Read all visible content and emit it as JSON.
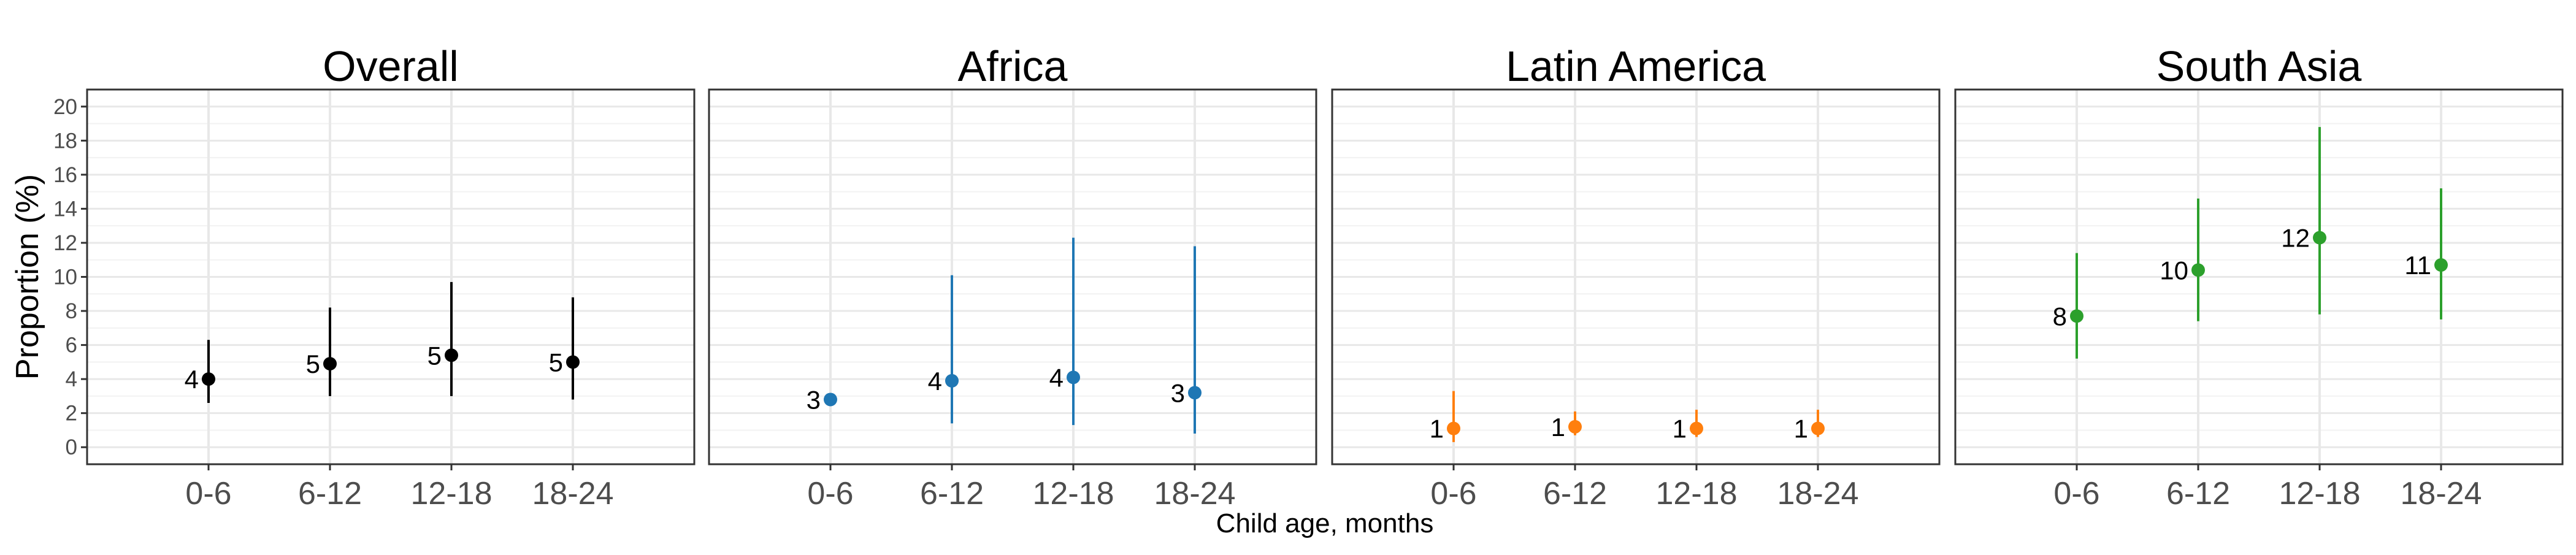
{
  "chart_data": {
    "type": "scatter",
    "subtype": "point-range faceted",
    "ylabel": "Proportion (%)",
    "xlabel": "Child age, months",
    "categories": [
      "0-6",
      "6-12",
      "12-18",
      "18-24"
    ],
    "ylim": [
      -1,
      21
    ],
    "yticks": [
      "0",
      "2",
      "4",
      "6",
      "8",
      "10",
      "12",
      "14",
      "16",
      "18",
      "20"
    ],
    "grid": true,
    "legend": "none",
    "panels": [
      {
        "title": "Overall",
        "color": "#000000",
        "values": [
          4.0,
          4.9,
          5.4,
          5.0
        ],
        "lower": [
          2.6,
          3.0,
          3.0,
          2.8
        ],
        "upper": [
          6.3,
          8.2,
          9.7,
          8.8
        ],
        "labels": [
          "4",
          "5",
          "5",
          "5"
        ]
      },
      {
        "title": "Africa",
        "color": "#1f77b4",
        "values": [
          2.8,
          3.9,
          4.1,
          3.2
        ],
        "lower": [
          2.8,
          1.4,
          1.3,
          0.8
        ],
        "upper": [
          2.8,
          10.1,
          12.3,
          11.8
        ],
        "labels": [
          "3",
          "4",
          "4",
          "3"
        ]
      },
      {
        "title": "Latin America",
        "color": "#ff7f0e",
        "values": [
          1.1,
          1.2,
          1.1,
          1.1
        ],
        "lower": [
          0.3,
          0.7,
          0.6,
          0.6
        ],
        "upper": [
          3.3,
          2.1,
          2.2,
          2.2
        ],
        "labels": [
          "1",
          "1",
          "1",
          "1"
        ]
      },
      {
        "title": "South Asia",
        "color": "#2ca02c",
        "values": [
          7.7,
          10.4,
          12.3,
          10.7
        ],
        "lower": [
          5.2,
          7.4,
          7.8,
          7.5
        ],
        "upper": [
          11.4,
          14.6,
          18.8,
          15.2
        ],
        "labels": [
          "8",
          "10",
          "12",
          "11"
        ]
      }
    ]
  }
}
